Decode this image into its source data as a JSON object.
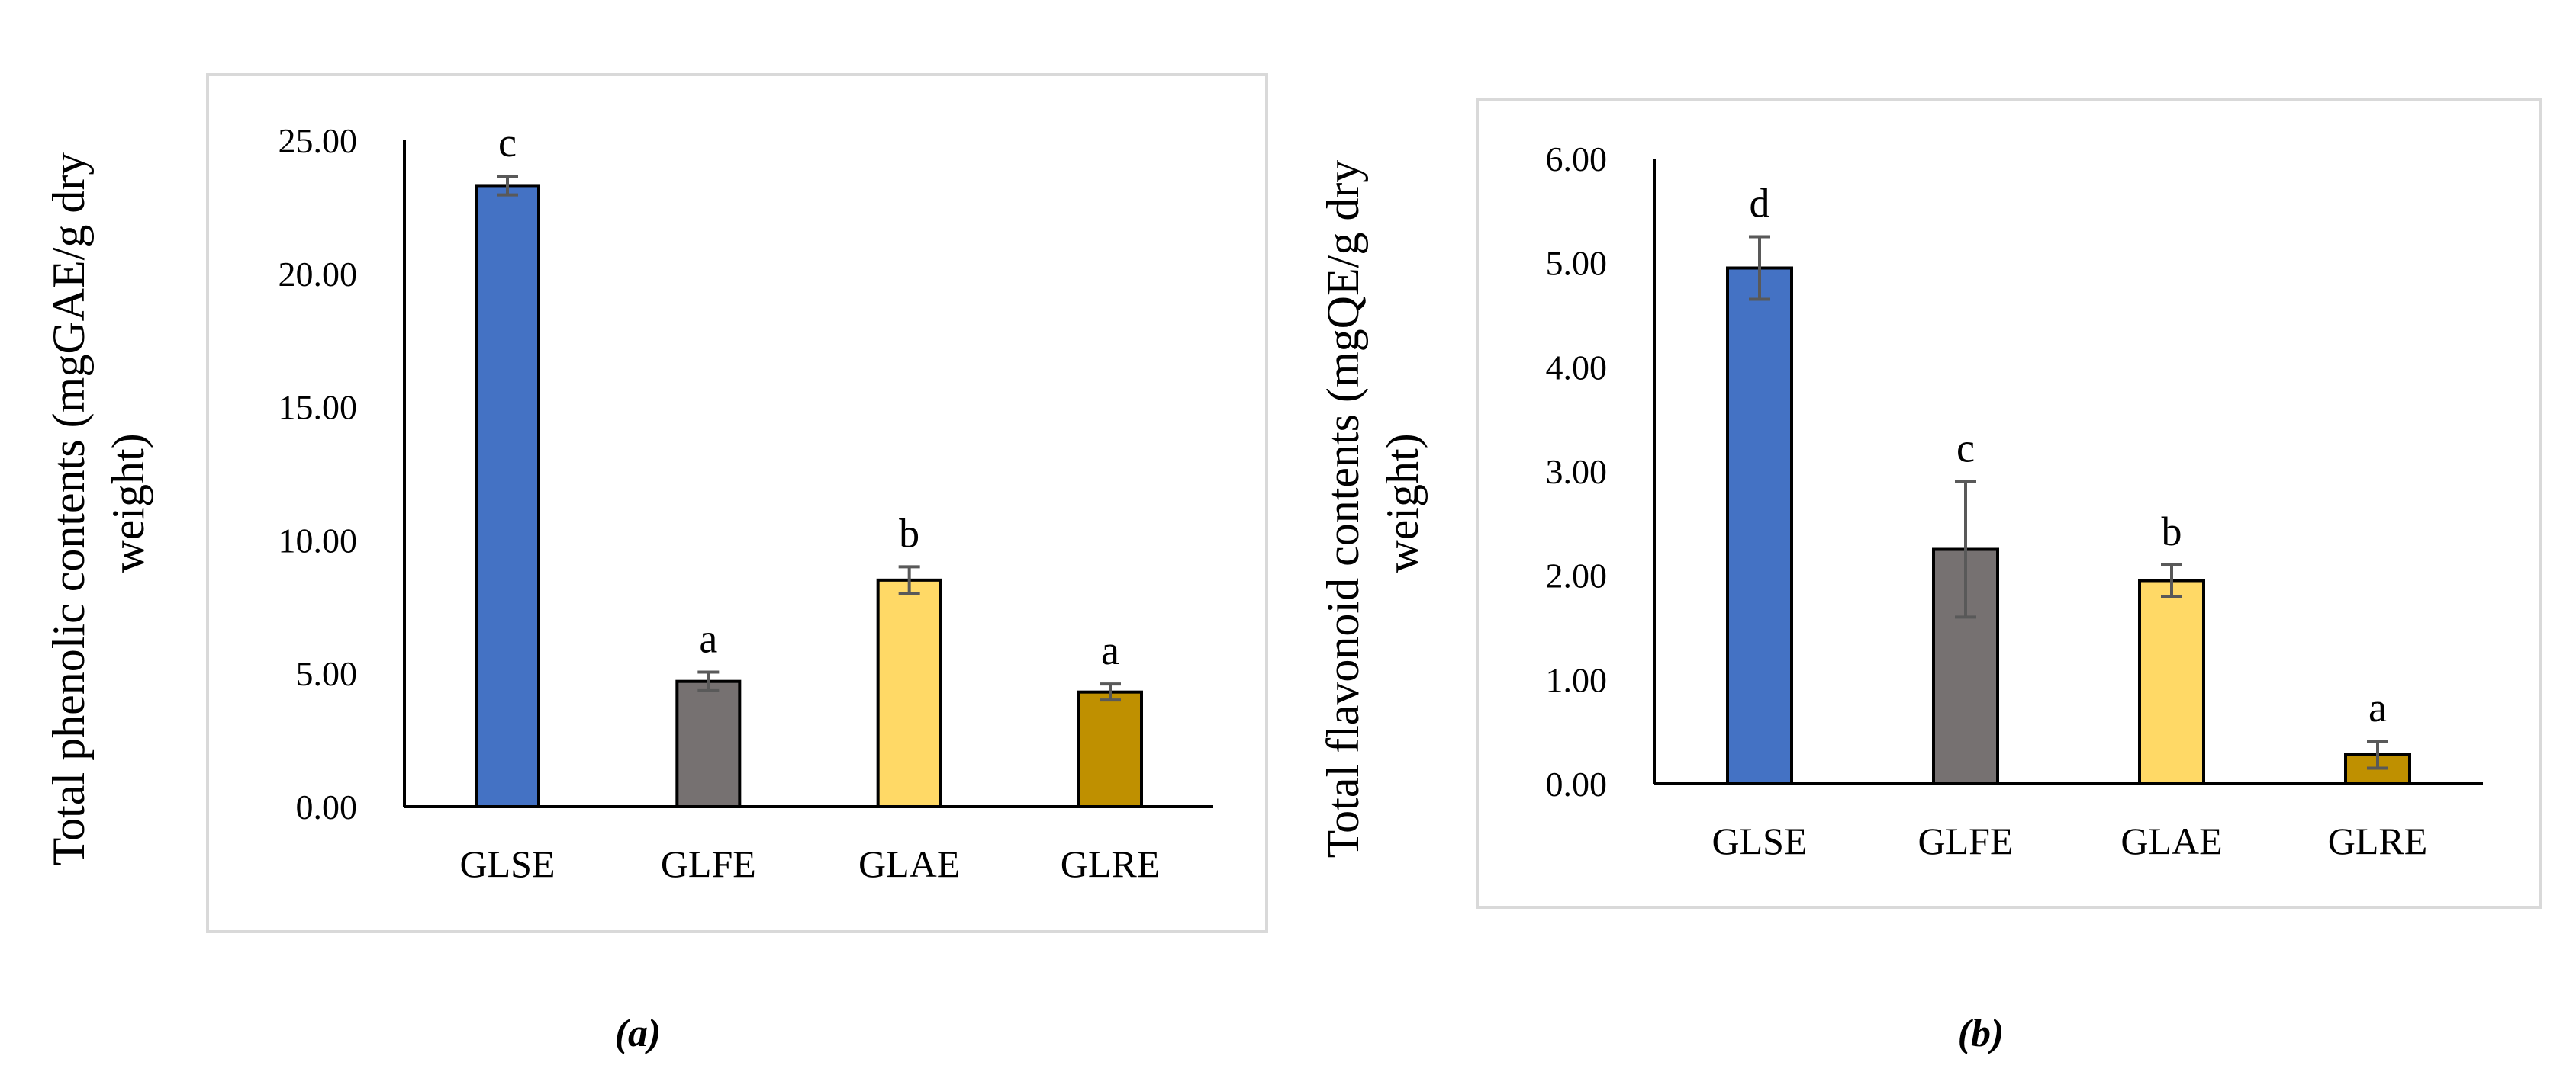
{
  "chart_data": [
    {
      "type": "bar",
      "panel": "a",
      "caption": "(a)",
      "categories": [
        "GLSE",
        "GLFE",
        "GLAE",
        "GLRE"
      ],
      "values": [
        23.3,
        4.7,
        8.5,
        4.3
      ],
      "errors": [
        0.35,
        0.35,
        0.5,
        0.3
      ],
      "significance": [
        "c",
        "a",
        "b",
        "a"
      ],
      "colors": [
        "#4472C4",
        "#767171",
        "#FFD966",
        "#BF9000"
      ],
      "ylabel": "Total phenolic contents (mgGAE/g dry weight)",
      "ylabel_lines": [
        "Total phenolic contents (mgGAE/g dry",
        "weight)"
      ],
      "yticks": [
        "0.00",
        "5.00",
        "10.00",
        "15.00",
        "20.00",
        "25.00"
      ],
      "ylim": [
        0,
        25
      ],
      "grid": false,
      "legend": "none"
    },
    {
      "type": "bar",
      "panel": "b",
      "caption": "(b)",
      "categories": [
        "GLSE",
        "GLFE",
        "GLAE",
        "GLRE"
      ],
      "values": [
        4.95,
        2.25,
        1.95,
        0.28
      ],
      "errors": [
        0.3,
        0.65,
        0.15,
        0.13
      ],
      "significance": [
        "d",
        "c",
        "b",
        "a"
      ],
      "colors": [
        "#4472C4",
        "#767171",
        "#FFD966",
        "#BF9000"
      ],
      "ylabel": "Total flavonoid contents (mgQE/g dry weight)",
      "ylabel_lines": [
        "Total flavonoid contents (mgQE/g dry",
        "weight)"
      ],
      "yticks": [
        "0.00",
        "1.00",
        "2.00",
        "3.00",
        "4.00",
        "5.00",
        "6.00"
      ],
      "ylim": [
        0,
        6
      ],
      "grid": false,
      "legend": "none"
    }
  ]
}
